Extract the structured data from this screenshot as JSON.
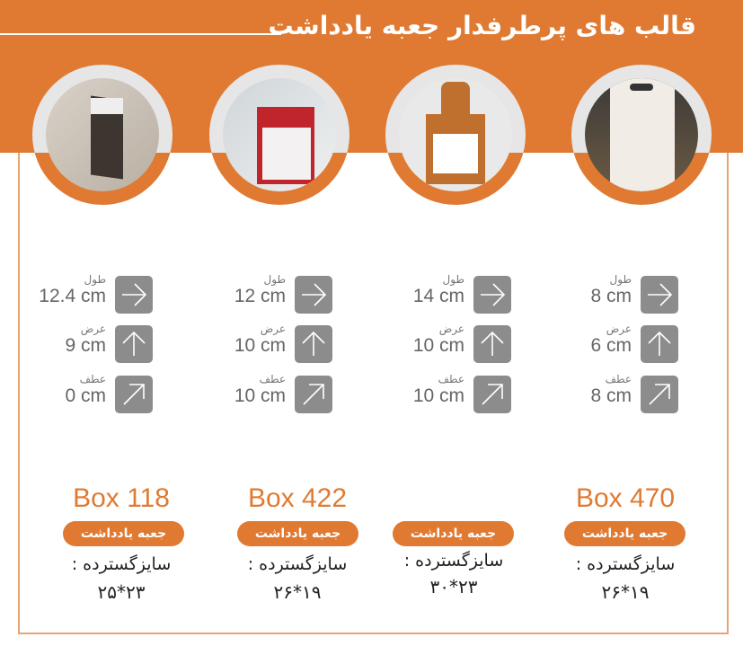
{
  "header": {
    "title": "قالب های پرطرفدار جعبه یادداشت"
  },
  "colors": {
    "accent": "#e07a32",
    "icon_bg": "#8c8c8c"
  },
  "spec_labels": {
    "length": "طول",
    "width": "عرض",
    "fold": "عطف"
  },
  "products": [
    {
      "name": "Box 118",
      "tag": "جعبه یادداشت",
      "size_label": "سایزگسترده :",
      "size": "۲۵*۲۳",
      "length": "12.4 cm",
      "width": "9 cm",
      "fold": "0 cm"
    },
    {
      "name": "Box 422",
      "tag": "جعبه یادداشت",
      "size_label": "سایزگسترده :",
      "size": "۲۶*۱۹",
      "length": "12 cm",
      "width": "10 cm",
      "fold": "10 cm"
    },
    {
      "name": "",
      "tag": "جعبه یادداشت",
      "size_label": "سایزگسترده :",
      "size": "۳۰*۲۳",
      "length": "14 cm",
      "width": "10 cm",
      "fold": "10 cm"
    },
    {
      "name": "Box 470",
      "tag": "جعبه یادداشت",
      "size_label": "سایزگسترده :",
      "size": "۲۶*۱۹",
      "length": "8 cm",
      "width": "6 cm",
      "fold": "8 cm"
    }
  ],
  "icons": {
    "length": "arrow-right-icon",
    "width": "arrow-up-icon",
    "fold": "arrow-up-right-icon"
  }
}
